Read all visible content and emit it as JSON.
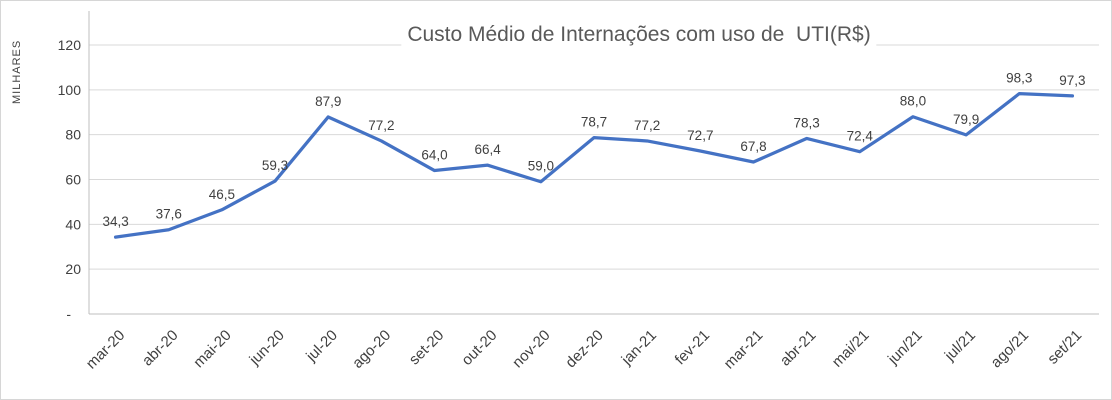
{
  "chart_data": {
    "type": "line",
    "title": "Custo Médio de Internações com uso de  UTI(R$)",
    "xlabel": "",
    "ylabel": "MILHARES",
    "categories": [
      "mar-20",
      "abr-20",
      "mai-20",
      "jun-20",
      "jul-20",
      "ago-20",
      "set-20",
      "out-20",
      "nov-20",
      "dez-20",
      "jan-21",
      "fev-21",
      "mar-21",
      "abr-21",
      "mai/21",
      "jun/21",
      "jul/21",
      "ago/21",
      "set/21"
    ],
    "values": [
      34.3,
      37.6,
      46.5,
      59.3,
      87.9,
      77.2,
      64.0,
      66.4,
      59.0,
      78.7,
      77.2,
      72.7,
      67.8,
      78.3,
      72.4,
      88.0,
      79.9,
      98.3,
      97.3
    ],
    "data_labels": [
      "34,3",
      "37,6",
      "46,5",
      "59,3",
      "87,9",
      "77,2",
      "64,0",
      "66,4",
      "59,0",
      "78,7",
      "77,2",
      "72,7",
      "67,8",
      "78,3",
      "72,4",
      "88,0",
      "79,9",
      "98,3",
      "97,3"
    ],
    "y_ticks": [
      {
        "value": 0,
        "label": "-"
      },
      {
        "value": 20,
        "label": "20"
      },
      {
        "value": 40,
        "label": "40"
      },
      {
        "value": 60,
        "label": "60"
      },
      {
        "value": 80,
        "label": "80"
      },
      {
        "value": 100,
        "label": "100"
      },
      {
        "value": 120,
        "label": "120"
      }
    ],
    "ylim": [
      0,
      120
    ],
    "grid": true,
    "legend": "none",
    "line_color": "#4472C4",
    "gridline_color": "#D9D9D9",
    "axis_line_color": "#BFBFBF",
    "label_color": "#404040",
    "title_color": "#595959"
  }
}
